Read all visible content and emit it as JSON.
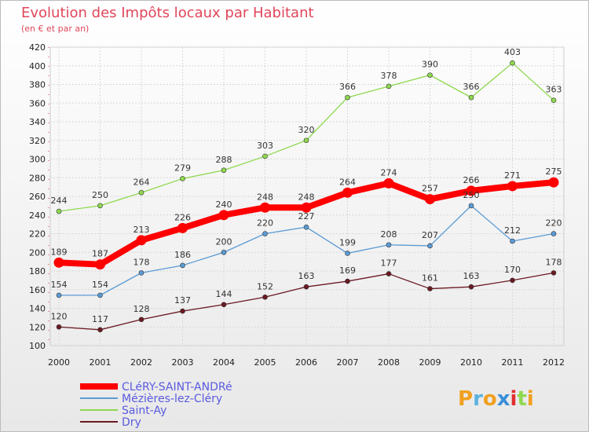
{
  "chart_data": {
    "type": "line",
    "title": "Evolution des Impôts locaux par Habitant",
    "subtitle": "(en € et par an)",
    "x": [
      "2000",
      "2001",
      "2002",
      "2003",
      "2004",
      "2005",
      "2006",
      "2007",
      "2008",
      "2009",
      "2010",
      "2011",
      "2012"
    ],
    "ylim": [
      100,
      420
    ],
    "yticks": [
      100,
      120,
      140,
      160,
      180,
      200,
      220,
      240,
      260,
      280,
      300,
      320,
      340,
      360,
      380,
      400,
      420
    ],
    "grid": true,
    "legend_position": "bottom-left",
    "series": [
      {
        "name": "CLéRY-SAINT-ANDRé",
        "color": "#ff0000",
        "values": [
          189,
          187,
          213,
          226,
          240,
          248,
          248,
          264,
          274,
          257,
          266,
          271,
          275
        ]
      },
      {
        "name": "Mézières-lez-Cléry",
        "color": "#5b9bd5",
        "values": [
          154,
          154,
          178,
          186,
          200,
          220,
          227,
          199,
          208,
          207,
          250,
          212,
          220
        ]
      },
      {
        "name": "Saint-Ay",
        "color": "#8ed84e",
        "values": [
          244,
          250,
          264,
          279,
          288,
          303,
          320,
          366,
          378,
          390,
          366,
          403,
          363
        ]
      },
      {
        "name": "Dry",
        "color": "#6b1a22",
        "values": [
          120,
          117,
          128,
          137,
          144,
          152,
          163,
          169,
          177,
          161,
          163,
          170,
          178
        ]
      }
    ]
  },
  "logo": {
    "text": "Proxiti",
    "colors": [
      "#f0a020",
      "#5bb2e0",
      "#f0a020",
      "#3a8fd8",
      "#e03030",
      "#8ed84e",
      "#f0a020"
    ]
  }
}
